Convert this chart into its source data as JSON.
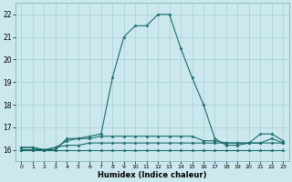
{
  "xlabel": "Humidex (Indice chaleur)",
  "xlim": [
    -0.5,
    23.5
  ],
  "ylim": [
    15.5,
    22.5
  ],
  "yticks": [
    16,
    17,
    18,
    19,
    20,
    21,
    22
  ],
  "xticks": [
    0,
    1,
    2,
    3,
    4,
    5,
    6,
    7,
    8,
    9,
    10,
    11,
    12,
    13,
    14,
    15,
    16,
    17,
    18,
    19,
    20,
    21,
    22,
    23
  ],
  "bg_color": "#cce8ef",
  "grid_color": "#aacdd6",
  "line_color": "#1a6b6b",
  "curves": [
    [
      16.0,
      16.0,
      16.0,
      16.0,
      16.0,
      16.0,
      16.0,
      16.0,
      16.0,
      16.0,
      16.0,
      16.0,
      16.0,
      16.0,
      16.0,
      16.0,
      16.0,
      16.0,
      16.0,
      16.0,
      16.0,
      16.0,
      16.0,
      16.0
    ],
    [
      16.0,
      16.0,
      16.0,
      16.1,
      16.2,
      16.2,
      16.3,
      16.3,
      16.3,
      16.3,
      16.3,
      16.3,
      16.3,
      16.3,
      16.3,
      16.3,
      16.3,
      16.3,
      16.3,
      16.3,
      16.3,
      16.3,
      16.3,
      16.3
    ],
    [
      16.1,
      16.1,
      16.0,
      16.1,
      16.4,
      16.5,
      16.5,
      16.6,
      16.6,
      16.6,
      16.6,
      16.6,
      16.6,
      16.6,
      16.6,
      16.6,
      16.4,
      16.4,
      16.3,
      16.3,
      16.3,
      16.3,
      16.5,
      16.3
    ],
    [
      16.1,
      16.1,
      16.0,
      16.0,
      16.5,
      16.5,
      16.6,
      16.7,
      19.2,
      21.0,
      21.5,
      21.5,
      22.0,
      22.0,
      20.5,
      19.2,
      18.0,
      16.5,
      16.2,
      16.2,
      16.3,
      16.7,
      16.7,
      16.4
    ]
  ]
}
